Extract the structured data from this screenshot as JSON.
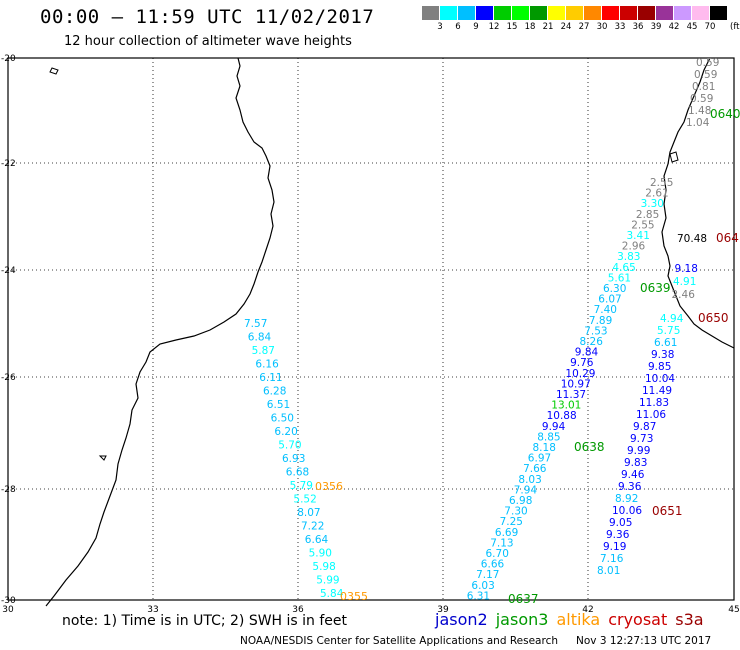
{
  "header": {
    "title": "00:00 – 11:59 UTC 11/02/2017",
    "subtitle": "12 hour collection of altimeter wave heights"
  },
  "colorbar": {
    "unit": "(ft)",
    "labels": [
      "3",
      "6",
      "9",
      "12",
      "15",
      "18",
      "21",
      "24",
      "27",
      "30",
      "33",
      "36",
      "39",
      "42",
      "45",
      "70"
    ],
    "colors": [
      "#808080",
      "#00ffff",
      "#00bfff",
      "#0000ff",
      "#00cc00",
      "#00ff00",
      "#009900",
      "#ffff00",
      "#ffcc00",
      "#ff8800",
      "#ff0000",
      "#cc0000",
      "#990000",
      "#993399",
      "#cc99ff",
      "#ffbbee",
      "#000000"
    ]
  },
  "axes": {
    "x_ticks": [
      "30",
      "33",
      "36",
      "39",
      "42",
      "45"
    ],
    "y_ticks": [
      "-20",
      "-22",
      "-24",
      "-26",
      "-28",
      "-30"
    ]
  },
  "tracks": [
    {
      "sat": "altika",
      "time_label": "0356",
      "time_label_2": "0355",
      "values": [
        "7.57",
        "6.84",
        "5.87",
        "6.16",
        "6.11",
        "6.28",
        "6.51",
        "6.50",
        "6.20",
        "5.70",
        "6.93",
        "6.68",
        "5.79",
        "5.52",
        "8.07",
        "7.22",
        "6.64",
        "5.90",
        "5.98",
        "5.99",
        "5.84"
      ]
    },
    {
      "sat": "jason3",
      "time_label": "0638",
      "time_label_2": "0637",
      "time_label_3": "0639",
      "time_label_4": "0640",
      "values": [
        "0.59",
        "0.59",
        "0.81",
        "0.59",
        "1.48",
        "1.04",
        "2.55",
        "2.61",
        "3.30",
        "2.85",
        "2.55",
        "3.41",
        "2.96",
        "3.83",
        "4.65",
        "5.61",
        "6.30",
        "6.07",
        "7.40",
        "7.89",
        "7.53",
        "8.26",
        "9.84",
        "9.76",
        "10.29",
        "10.97",
        "11.37",
        "13.01",
        "10.88",
        "9.94",
        "8.85",
        "8.18",
        "6.97",
        "7.66",
        "8.03",
        "7.94",
        "6.98",
        "7.30",
        "7.25",
        "6.69",
        "7.13",
        "6.70",
        "6.66",
        "7.17",
        "6.03",
        "6.31"
      ]
    },
    {
      "sat": "cryosat",
      "time_label": "0650",
      "time_label_2": "0651",
      "time_label_3": "064",
      "values": [
        "70.48",
        "9.18",
        "4.91",
        "2.46",
        "4.94",
        "5.75",
        "6.61",
        "9.38",
        "9.85",
        "10.04",
        "11.49",
        "11.83",
        "11.06",
        "9.87",
        "9.73",
        "9.99",
        "9.83",
        "9.46",
        "9.36",
        "8.92",
        "10.06",
        "9.05",
        "9.36",
        "9.19",
        "7.16",
        "8.01"
      ]
    }
  ],
  "legend": {
    "note": "note: 1) Time is in UTC; 2) SWH is in feet",
    "sats": [
      {
        "name": "jason2",
        "color": "#0000cc"
      },
      {
        "name": "jason3",
        "color": "#009900"
      },
      {
        "name": "altika",
        "color": "#ff9900"
      },
      {
        "name": "cryosat",
        "color": "#cc0000"
      },
      {
        "name": "s3a",
        "color": "#990000"
      }
    ]
  },
  "footer": {
    "org": "NOAA/NESDIS Center for Satellite Applications and Research",
    "timestamp": "Nov  3 12:27:13 UTC 2017"
  }
}
